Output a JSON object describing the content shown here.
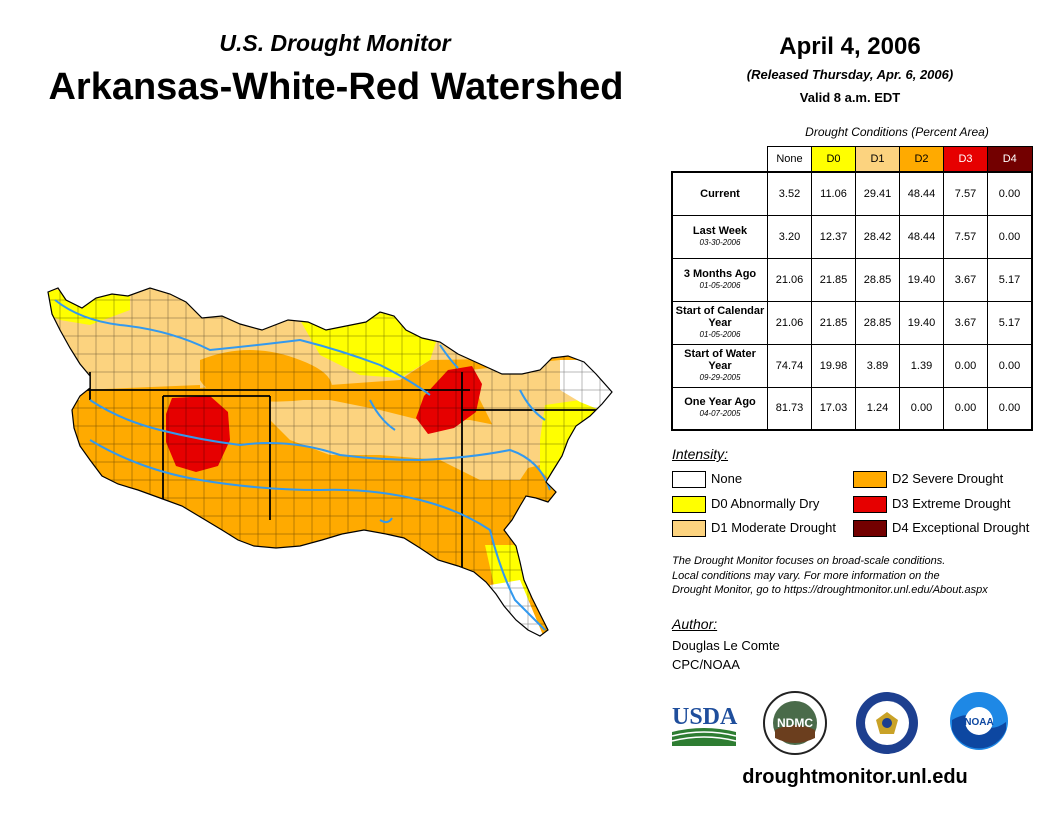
{
  "header": {
    "subtitle": "U.S. Drought Monitor",
    "title": "Arkansas-White-Red Watershed",
    "date": "April 4, 2006",
    "released": "(Released Thursday, Apr. 6, 2006)",
    "valid": "Valid 8 a.m. EDT"
  },
  "table": {
    "caption": "Drought Conditions (Percent Area)",
    "columns": [
      "None",
      "D0",
      "D1",
      "D2",
      "D3",
      "D4"
    ],
    "column_colors": [
      "#ffffff",
      "#ffff00",
      "#fcd37f",
      "#ffaa00",
      "#e60000",
      "#730000"
    ],
    "rows": [
      {
        "label": "Current",
        "date": "",
        "values": [
          "3.52",
          "11.06",
          "29.41",
          "48.44",
          "7.57",
          "0.00"
        ]
      },
      {
        "label": "Last Week",
        "date": "03-30-2006",
        "values": [
          "3.20",
          "12.37",
          "28.42",
          "48.44",
          "7.57",
          "0.00"
        ]
      },
      {
        "label": "3 Months Ago",
        "date": "01-05-2006",
        "values": [
          "21.06",
          "21.85",
          "28.85",
          "19.40",
          "3.67",
          "5.17"
        ]
      },
      {
        "label": "Start of Calendar Year",
        "date": "01-05-2006",
        "values": [
          "21.06",
          "21.85",
          "28.85",
          "19.40",
          "3.67",
          "5.17"
        ]
      },
      {
        "label": "Start of Water Year",
        "date": "09-29-2005",
        "values": [
          "74.74",
          "19.98",
          "3.89",
          "1.39",
          "0.00",
          "0.00"
        ]
      },
      {
        "label": "One Year Ago",
        "date": "04-07-2005",
        "values": [
          "81.73",
          "17.03",
          "1.24",
          "0.00",
          "0.00",
          "0.00"
        ]
      }
    ]
  },
  "legend": {
    "title": "Intensity:",
    "items": [
      {
        "label": "None",
        "color": "#ffffff"
      },
      {
        "label": "D0 Abnormally Dry",
        "color": "#ffff00"
      },
      {
        "label": "D1 Moderate Drought",
        "color": "#fcd37f"
      },
      {
        "label": "D2 Severe Drought",
        "color": "#ffaa00"
      },
      {
        "label": "D3 Extreme Drought",
        "color": "#e60000"
      },
      {
        "label": "D4 Exceptional Drought",
        "color": "#730000"
      }
    ]
  },
  "note": {
    "line1": "The Drought Monitor focuses on broad-scale conditions.",
    "line2": "Local conditions may vary. For more information on the",
    "line3": "Drought Monitor, go to https://droughtmonitor.unl.edu/About.aspx"
  },
  "author": {
    "title": "Author:",
    "name": "Douglas Le Comte",
    "org": "CPC/NOAA"
  },
  "logos": {
    "usda": "USDA",
    "ndmc": "NDMC",
    "noaa": "NOAA"
  },
  "site": "droughtmonitor.unl.edu",
  "map_colors": {
    "river": "#3399ee",
    "boundary": "#000000"
  }
}
